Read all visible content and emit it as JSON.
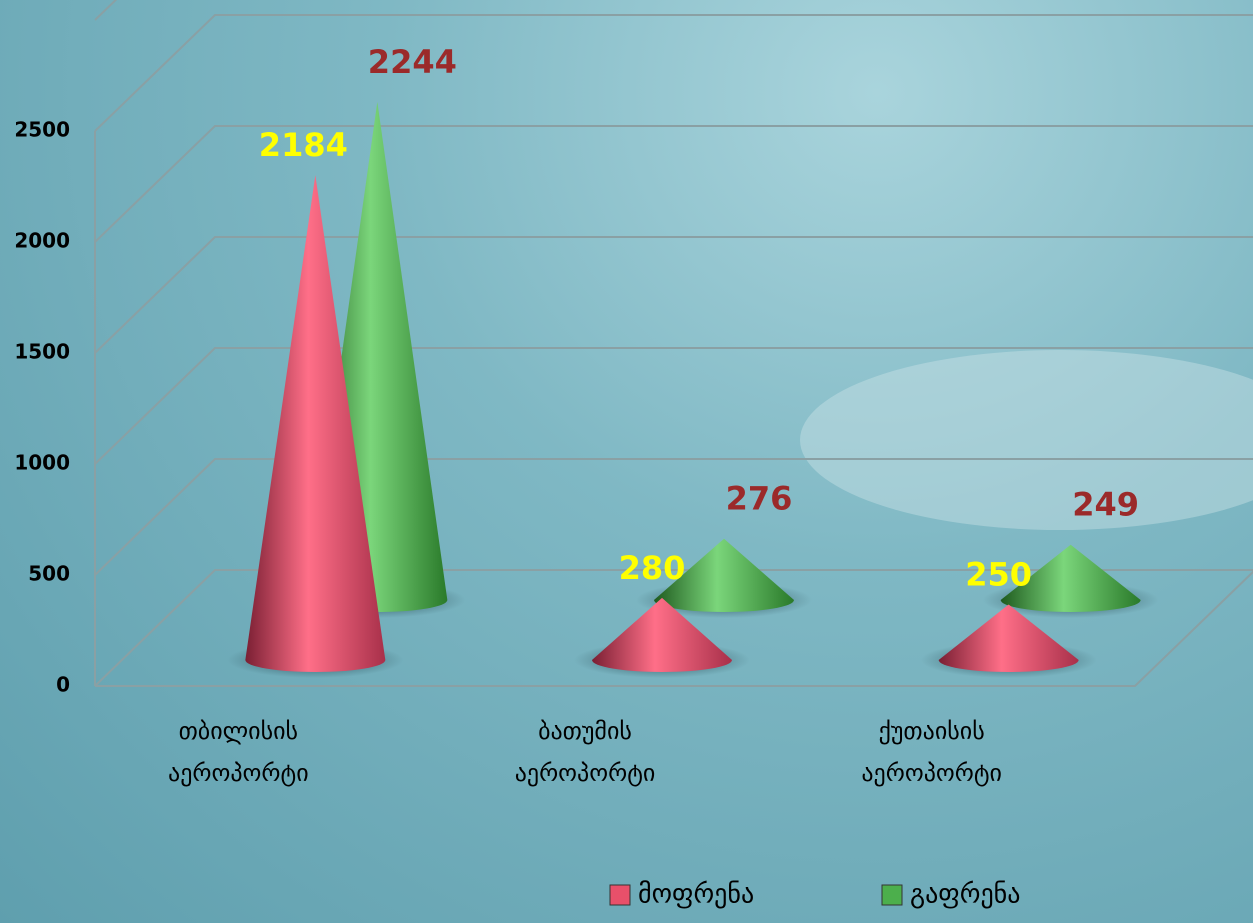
{
  "chart_data": {
    "type": "cone",
    "categories": [
      "თბილისის აეროპორტი",
      "ბათუმის აეროპორტი",
      "ქუთაისის აეროპორტი"
    ],
    "series": [
      {
        "name": "მოფრენა",
        "color": "#e8506a",
        "values": [
          2184,
          280,
          250
        ]
      },
      {
        "name": "გაფრენა",
        "color": "#4caf4c",
        "values": [
          2244,
          276,
          249
        ]
      }
    ],
    "ylim": [
      0,
      3000
    ],
    "yticks": [
      0,
      500,
      1000,
      1500,
      2000,
      2500
    ],
    "grid": true,
    "legend": "bottom"
  }
}
